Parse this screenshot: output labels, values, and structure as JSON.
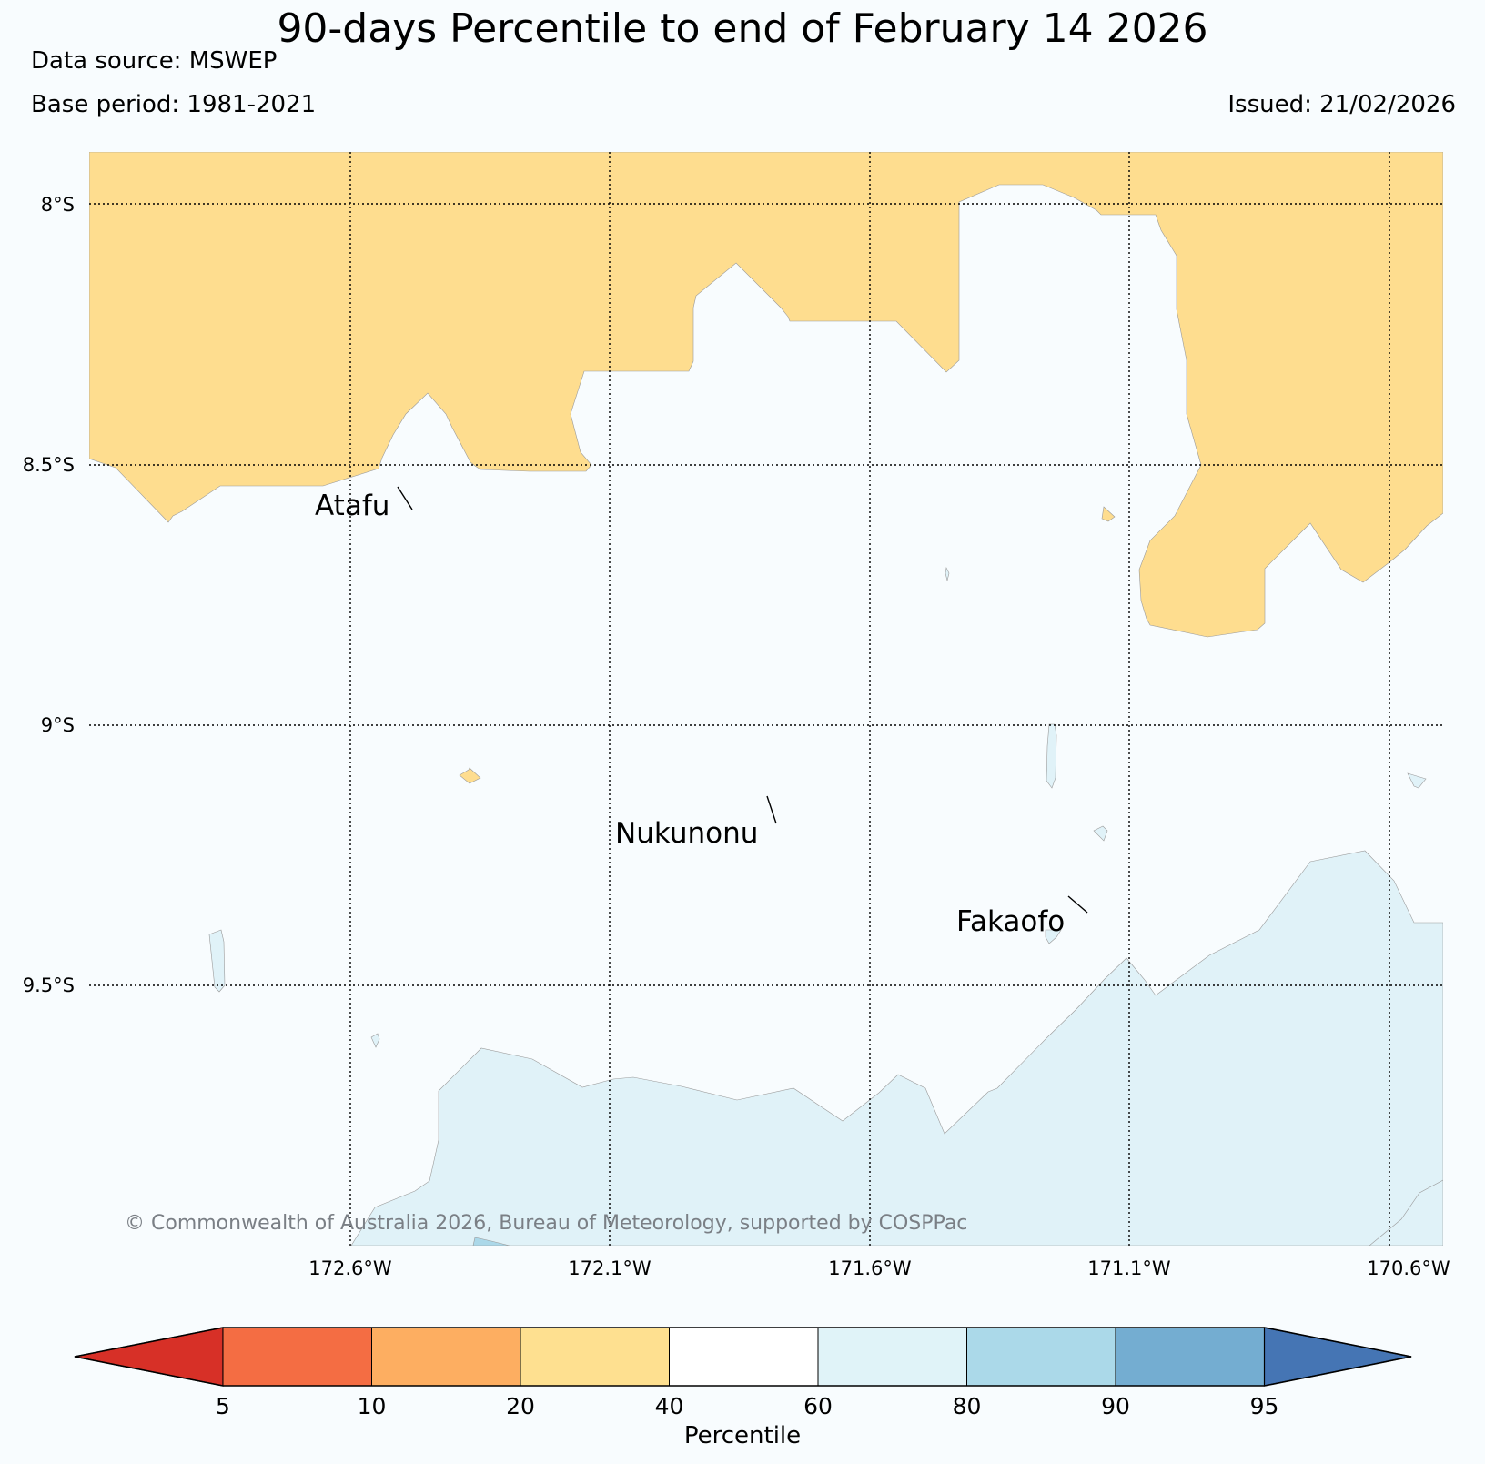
{
  "header": {
    "title": "90-days Percentile to end of February 14 2026",
    "data_source": "Data source: MSWEP",
    "base_period": "Base period: 1981-2021",
    "issued": "Issued: 21/02/2026"
  },
  "map": {
    "lat_labels": [
      "8°S",
      "8.5°S",
      "9°S",
      "9.5°S"
    ],
    "lon_labels": [
      "172.6°W",
      "172.1°W",
      "171.6°W",
      "171.1°W",
      "170.6°W"
    ],
    "places": [
      "Atafu",
      "Nukunonu",
      "Fakaofo"
    ],
    "copyright": "© Commonwealth of Australia 2026, Bureau of Meteorology, supported by COSPPac",
    "colors": {
      "band_20_40": "#fedd8f",
      "band_40_60": "#f8fcfe",
      "band_60_80": "#e0f2f8",
      "band_80_90": "#abd8e9"
    }
  },
  "colorbar": {
    "title": "Percentile",
    "ticks": [
      "5",
      "10",
      "20",
      "40",
      "60",
      "80",
      "90",
      "95"
    ],
    "colors": [
      "#d73027",
      "#f46d43",
      "#fdae61",
      "#fee090",
      "#ffffff",
      "#e0f3f8",
      "#abd9e9",
      "#74add1",
      "#4575b4"
    ]
  }
}
